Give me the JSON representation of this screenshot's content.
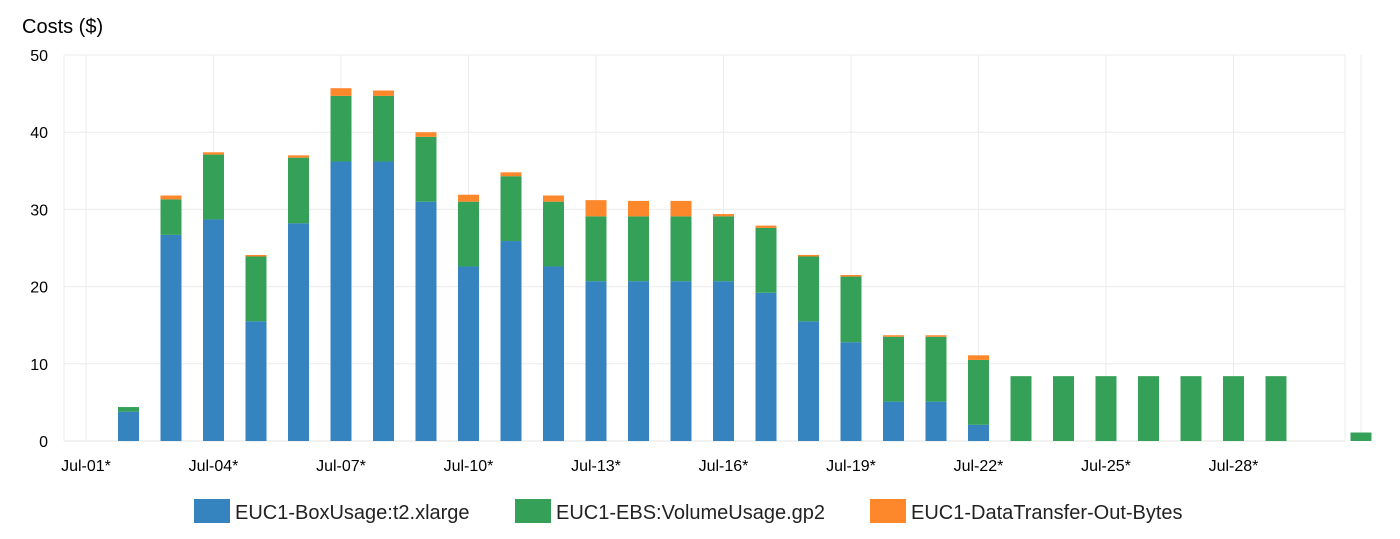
{
  "chart_data": {
    "type": "bar",
    "stacked": true,
    "title": "",
    "ylabel": "Costs ($)",
    "xlabel": "",
    "ylim": [
      0,
      50
    ],
    "yticks": [
      0,
      10,
      20,
      30,
      40,
      50
    ],
    "grid": true,
    "legend_position": "bottom",
    "categories": [
      "Jul-01*",
      "Jul-02*",
      "Jul-03*",
      "Jul-04*",
      "Jul-05*",
      "Jul-06*",
      "Jul-07*",
      "Jul-08*",
      "Jul-09*",
      "Jul-10*",
      "Jul-11*",
      "Jul-12*",
      "Jul-13*",
      "Jul-14*",
      "Jul-15*",
      "Jul-16*",
      "Jul-17*",
      "Jul-18*",
      "Jul-19*",
      "Jul-20*",
      "Jul-21*",
      "Jul-22*",
      "Jul-23*",
      "Jul-24*",
      "Jul-25*",
      "Jul-26*",
      "Jul-27*",
      "Jul-28*",
      "Jul-29*",
      "Jul-30*",
      "Jul-31*"
    ],
    "shown_tick_labels": [
      "Jul-01*",
      "Jul-04*",
      "Jul-07*",
      "Jul-10*",
      "Jul-13*",
      "Jul-16*",
      "Jul-19*",
      "Jul-22*",
      "Jul-25*",
      "Jul-28*"
    ],
    "series": [
      {
        "name": "EUC1-BoxUsage:t2.xlarge",
        "color": "#3583bf",
        "values": [
          0,
          3.8,
          26.7,
          28.7,
          15.5,
          28.2,
          36.2,
          36.2,
          31.0,
          22.6,
          25.9,
          22.6,
          20.7,
          20.7,
          20.7,
          20.7,
          19.2,
          15.5,
          12.8,
          5.1,
          5.1,
          2.1,
          0,
          0,
          0,
          0,
          0,
          0,
          0,
          0,
          0
        ]
      },
      {
        "name": "EUC1-EBS:VolumeUsage.gp2",
        "color": "#35a158",
        "values": [
          0,
          0.6,
          4.6,
          8.4,
          8.4,
          8.5,
          8.5,
          8.5,
          8.4,
          8.4,
          8.4,
          8.4,
          8.4,
          8.4,
          8.4,
          8.4,
          8.4,
          8.4,
          8.5,
          8.4,
          8.4,
          8.4,
          8.4,
          8.4,
          8.4,
          8.4,
          8.4,
          8.4,
          8.4,
          0,
          1.1
        ]
      },
      {
        "name": "EUC1-DataTransfer-Out-Bytes",
        "color": "#fd872b",
        "values": [
          0,
          0,
          0.5,
          0.3,
          0.2,
          0.3,
          1.0,
          0.7,
          0.6,
          0.9,
          0.5,
          0.8,
          2.1,
          2.0,
          2.0,
          0.3,
          0.3,
          0.2,
          0.2,
          0.2,
          0.2,
          0.6,
          0,
          0,
          0,
          0,
          0,
          0,
          0,
          0,
          0
        ]
      }
    ]
  }
}
